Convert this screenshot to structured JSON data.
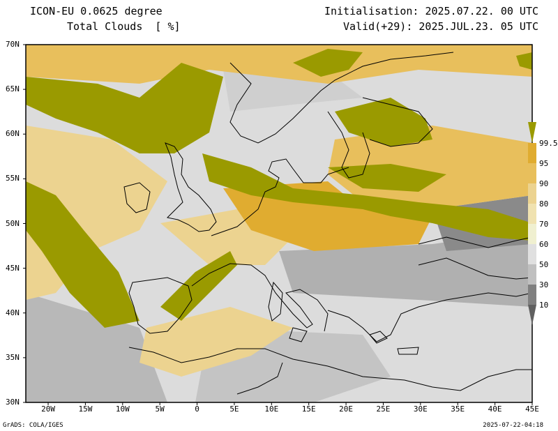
{
  "header": {
    "model": "ICON-EU 0.0625 degree",
    "variable": "Total Clouds  [ %]",
    "init": "Initialisation: 2025.07.22. 00 UTC",
    "valid": "Valid(+29): 2025.JUL.23. 05 UTC"
  },
  "map": {
    "lat_labels": [
      "70N",
      "65N",
      "60N",
      "55N",
      "50N",
      "45N",
      "40N",
      "35N",
      "30N"
    ],
    "lon_labels": [
      "20W",
      "15W",
      "10W",
      "5W",
      "0",
      "5E",
      "10E",
      "15E",
      "20E",
      "25E",
      "30E",
      "35E",
      "40E",
      "45E"
    ],
    "lat_range": [
      30,
      70
    ],
    "lon_range": [
      -23,
      45
    ]
  },
  "colorbar": {
    "labels": [
      "99.5",
      "95",
      "90",
      "80",
      "70",
      "60",
      "50",
      "30",
      "10"
    ],
    "colors": [
      "#9a9a00",
      "#e0ac30",
      "#e8bf5c",
      "#ecd390",
      "#f0e2b0",
      "#f0f0d0",
      "#e0e0e0",
      "#c0c0c0",
      "#a0a0a0",
      "#808080",
      "#606060"
    ]
  },
  "colors": {
    "overcast": "#9a9a00",
    "dense": "#e0ac30",
    "medium": "#ecd390",
    "light": "#dcdcdc",
    "grey": "#a8a8a8",
    "darkgrey": "#7a7a7a"
  },
  "footer": {
    "left": "GrADS: COLA/IGES",
    "right": "2025-07-22-04:18"
  }
}
